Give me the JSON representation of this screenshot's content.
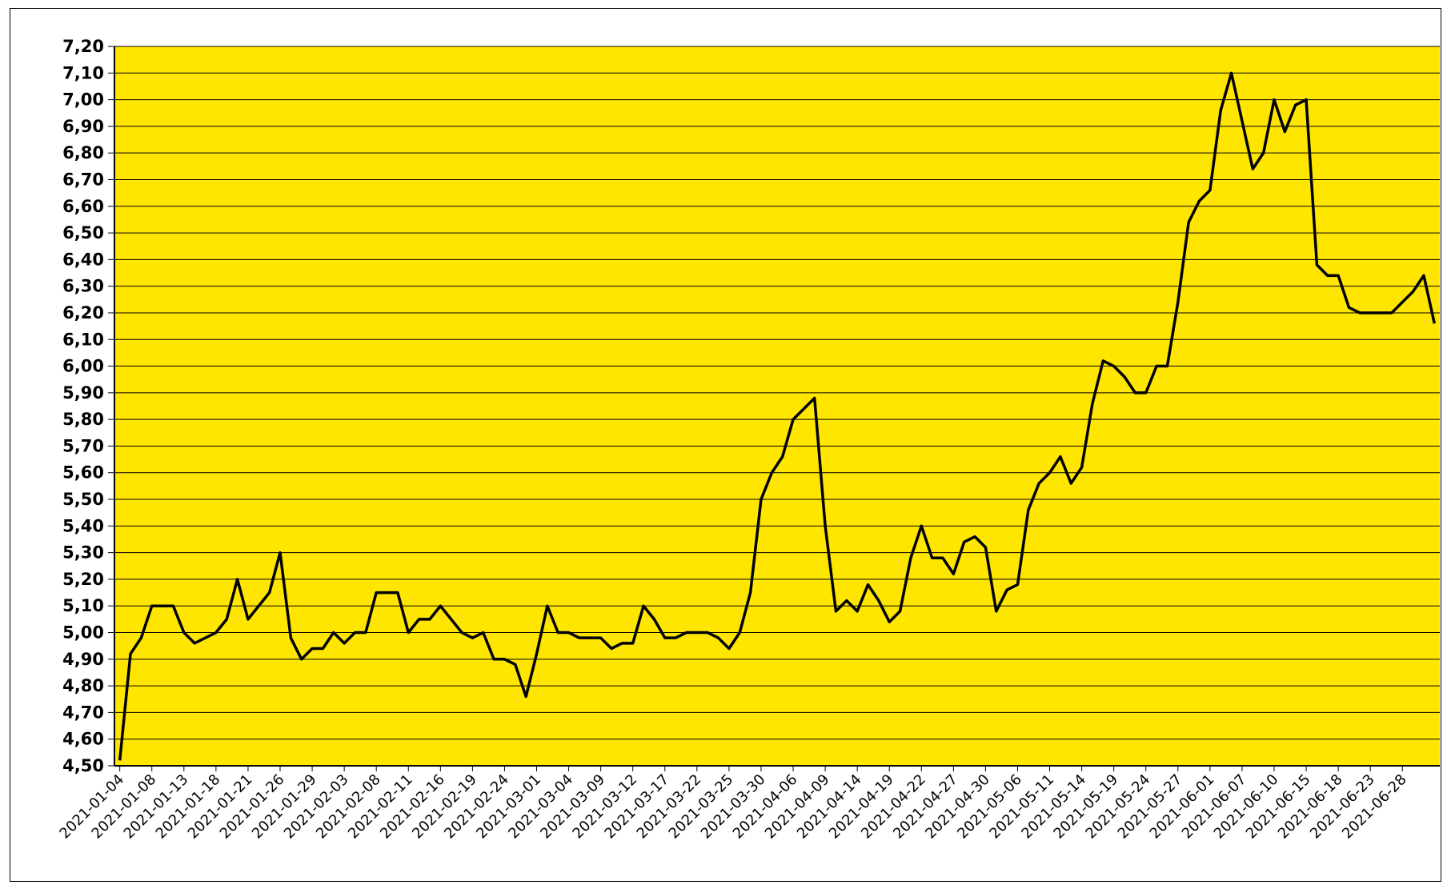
{
  "chart_data": {
    "type": "line",
    "title": "",
    "xlabel": "",
    "ylabel": "",
    "ylim": [
      4.5,
      7.2
    ],
    "y_step": 0.1,
    "decimal_separator": ",",
    "grid": true,
    "legend": "none",
    "colors": {
      "plot_background": "#FFE600",
      "line": "#000000",
      "grid": "#000000"
    },
    "x_tick_labels": [
      "2021-01-04",
      "2021-01-08",
      "2021-01-13",
      "2021-01-18",
      "2021-01-21",
      "2021-01-26",
      "2021-01-29",
      "2021-02-03",
      "2021-02-08",
      "2021-02-11",
      "2021-02-16",
      "2021-02-19",
      "2021-02-24",
      "2021-03-01",
      "2021-03-04",
      "2021-03-09",
      "2021-03-12",
      "2021-03-17",
      "2021-03-22",
      "2021-03-25",
      "2021-03-30",
      "2021-04-06",
      "2021-04-09",
      "2021-04-14",
      "2021-04-19",
      "2021-04-22",
      "2021-04-27",
      "2021-04-30",
      "2021-05-06",
      "2021-05-11",
      "2021-05-14",
      "2021-05-19",
      "2021-05-24",
      "2021-05-27",
      "2021-06-01",
      "2021-06-07",
      "2021-06-10",
      "2021-06-15",
      "2021-06-18",
      "2021-06-23",
      "2021-06-28"
    ],
    "x_tick_every": 3,
    "series": [
      {
        "values": [
          4.52,
          4.92,
          4.98,
          5.1,
          5.1,
          5.1,
          5.0,
          4.96,
          4.98,
          5.0,
          5.05,
          5.2,
          5.05,
          5.1,
          5.15,
          5.3,
          4.98,
          4.9,
          4.94,
          4.94,
          5.0,
          4.96,
          5.0,
          5.0,
          5.15,
          5.15,
          5.15,
          5.0,
          5.05,
          5.05,
          5.1,
          5.05,
          5.0,
          4.98,
          5.0,
          4.9,
          4.9,
          4.88,
          4.76,
          4.92,
          5.1,
          5.0,
          5.0,
          4.98,
          4.98,
          4.98,
          4.94,
          4.96,
          4.96,
          5.1,
          5.05,
          4.98,
          4.98,
          5.0,
          5.0,
          5.0,
          4.98,
          4.94,
          5.0,
          5.15,
          5.5,
          5.6,
          5.66,
          5.8,
          5.84,
          5.88,
          5.4,
          5.08,
          5.12,
          5.08,
          5.18,
          5.12,
          5.04,
          5.08,
          5.28,
          5.4,
          5.28,
          5.28,
          5.22,
          5.34,
          5.36,
          5.32,
          5.08,
          5.16,
          5.18,
          5.46,
          5.56,
          5.6,
          5.66,
          5.56,
          5.62,
          5.86,
          6.02,
          6.0,
          5.96,
          5.9,
          5.9,
          6.0,
          6.0,
          6.24,
          6.54,
          6.62,
          6.66,
          6.96,
          7.1,
          6.92,
          6.74,
          6.8,
          7.0,
          6.88,
          6.98,
          7.0,
          6.38,
          6.34,
          6.34,
          6.22,
          6.2,
          6.2,
          6.2,
          6.2,
          6.24,
          6.28,
          6.34,
          6.16
        ]
      }
    ]
  }
}
